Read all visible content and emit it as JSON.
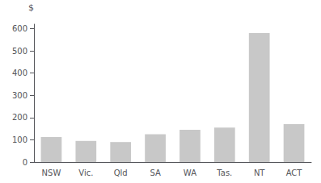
{
  "chart_data": {
    "type": "bar",
    "categories": [
      "NSW",
      "Vic.",
      "Qld",
      "SA",
      "WA",
      "Tas.",
      "NT",
      "ACT"
    ],
    "values": [
      112,
      95,
      90,
      125,
      145,
      155,
      580,
      170
    ],
    "color": "#c8c8c8",
    "ylabel": "$",
    "ylim": [
      0,
      620
    ],
    "yticks": [
      0,
      100,
      200,
      300,
      400,
      500,
      600
    ],
    "grid": false
  }
}
